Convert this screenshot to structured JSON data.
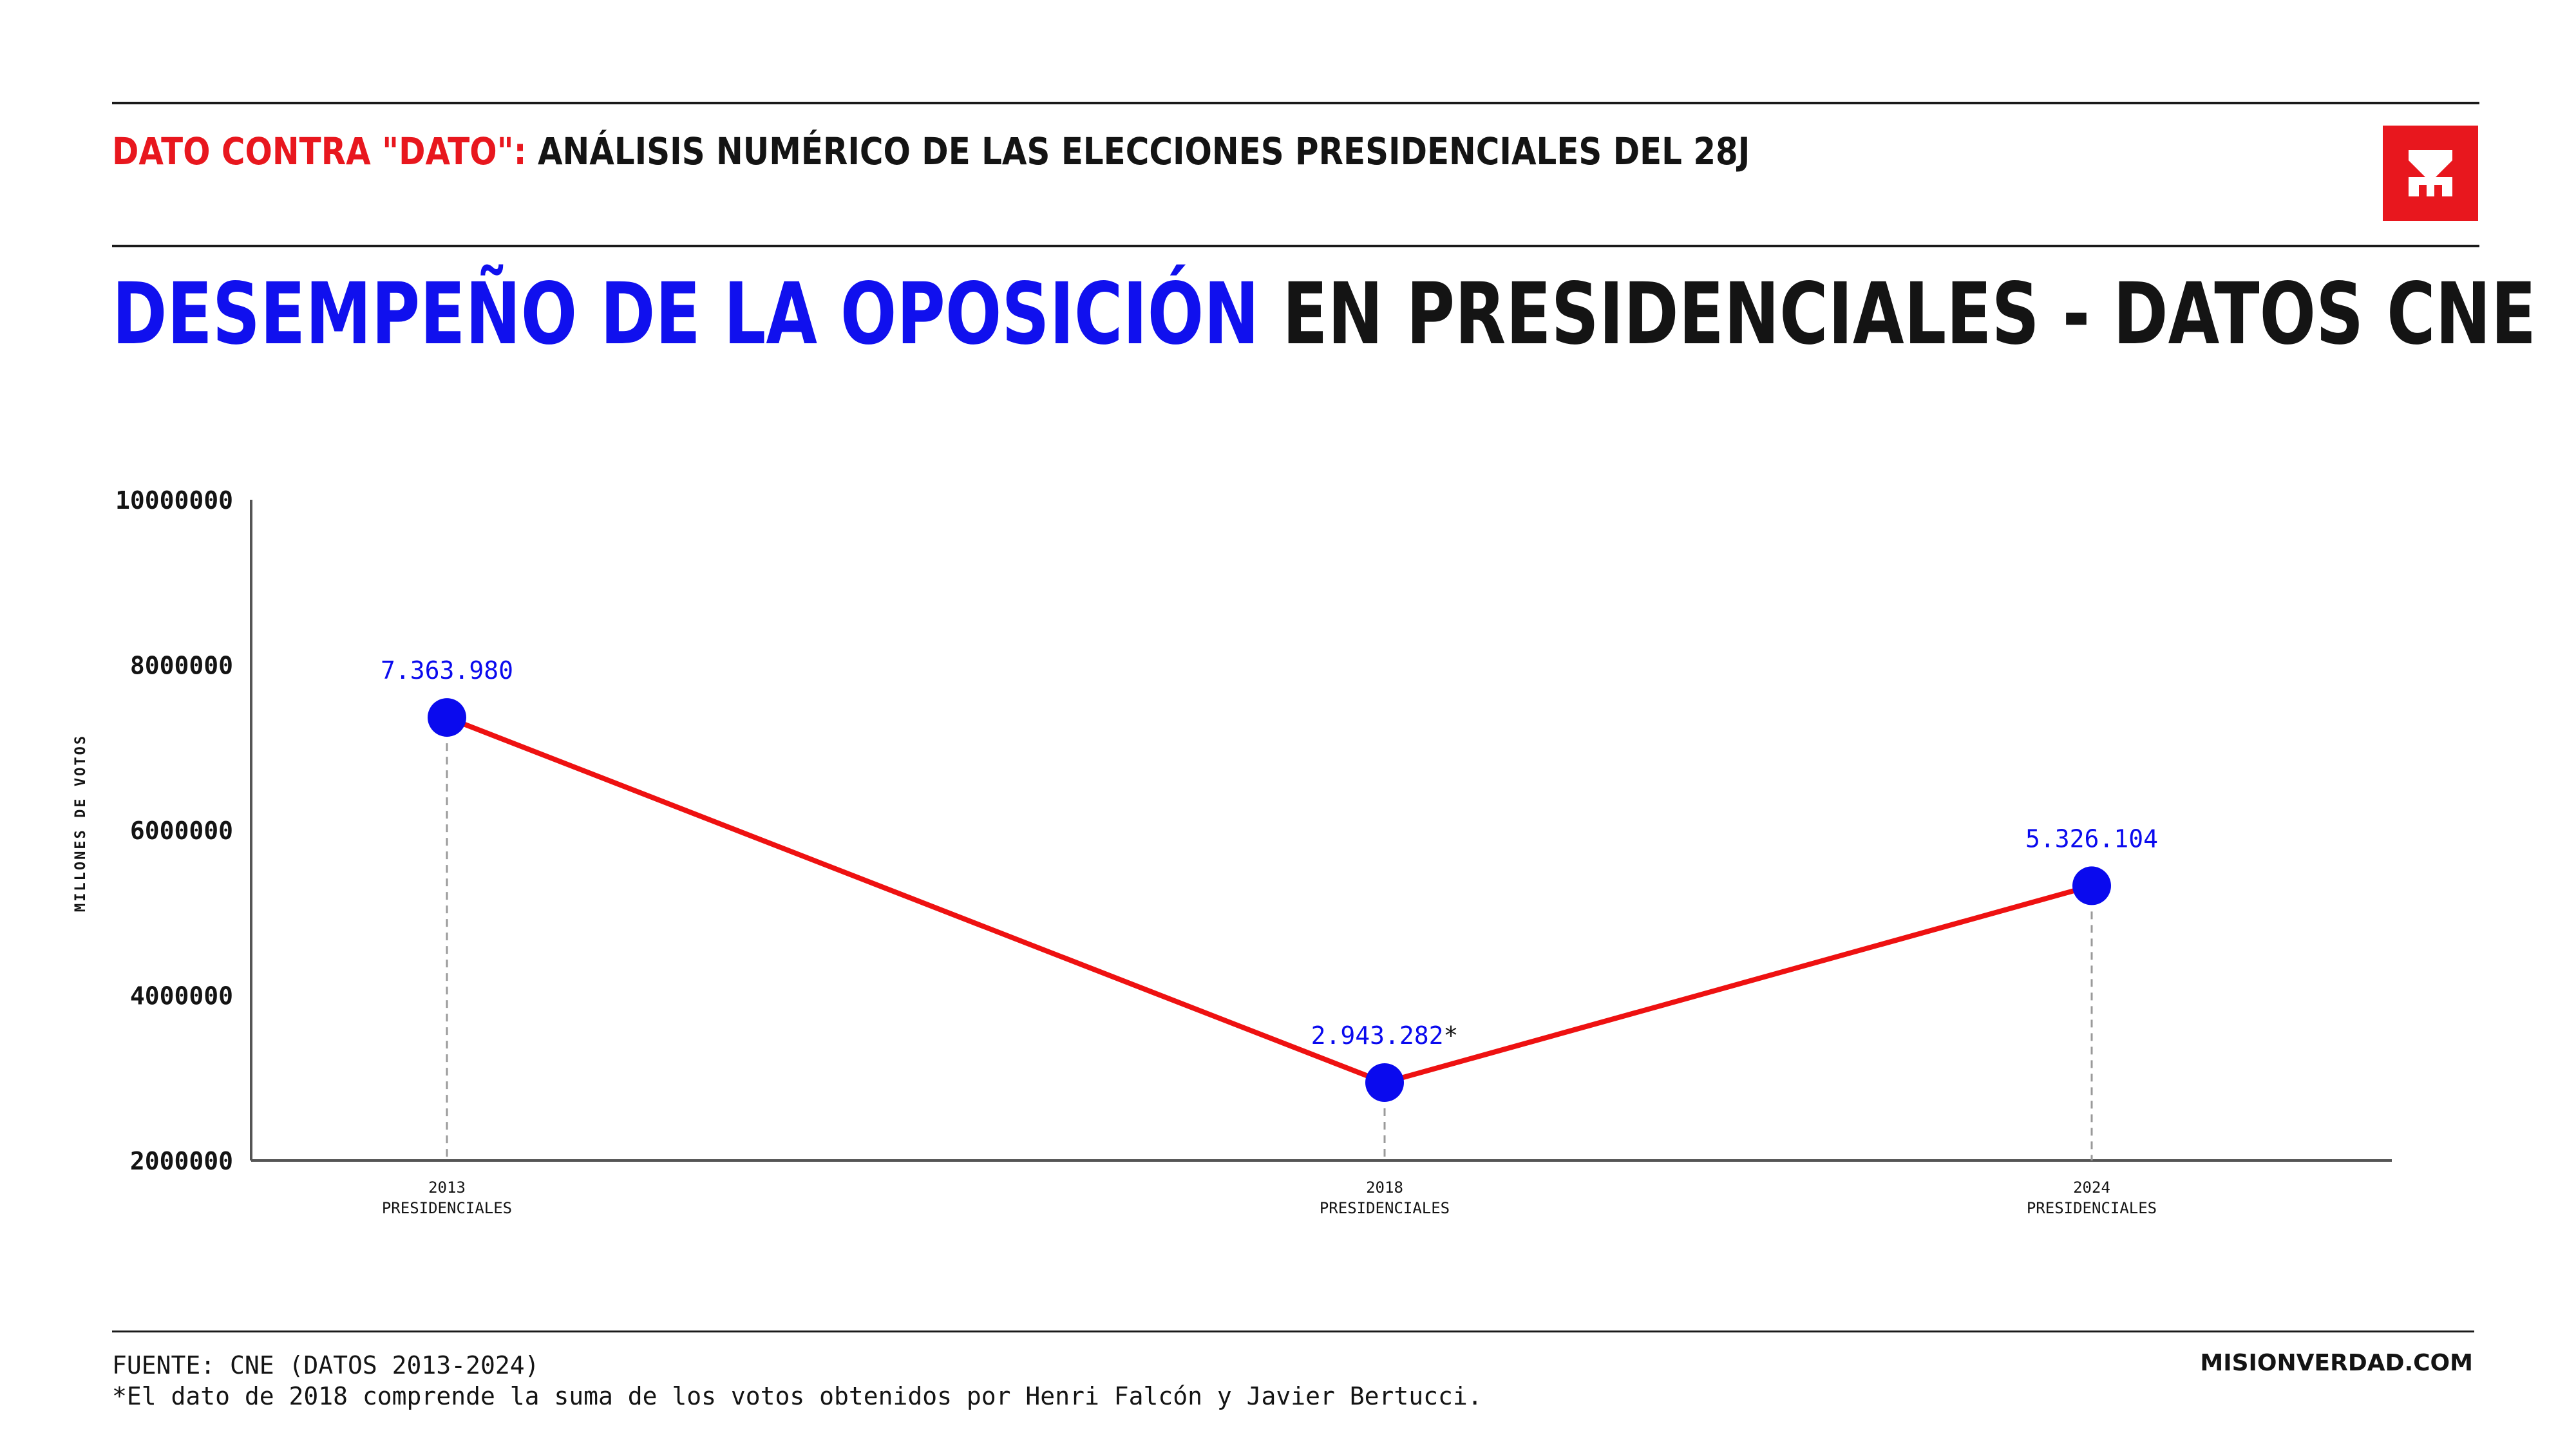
{
  "header": {
    "kicker_red": "DATO CONTRA \"DATO\":",
    "kicker_black": " ANÁLISIS NUMÉRICO DE LAS ELECCIONES PRESIDENCIALES DEL 28J",
    "logo_icon": "misionverdad-logo-icon",
    "logo_color": "#e8171e"
  },
  "title": {
    "blue": "DESEMPEÑO DE LA OPOSICIÓN",
    "black": " EN PRESIDENCIALES - DATOS CNE"
  },
  "chart_data": {
    "type": "line",
    "title": "DESEMPEÑO DE LA OPOSICIÓN EN PRESIDENCIALES - DATOS CNE",
    "xlabel": "",
    "ylabel": "MILLONES DE VOTOS",
    "ylim": [
      2000000,
      10000000
    ],
    "y_ticks": [
      "10000000",
      "8000000",
      "6000000",
      "4000000",
      "2000000"
    ],
    "y_tick_values": [
      10000000,
      8000000,
      6000000,
      4000000,
      2000000
    ],
    "categories": [
      {
        "year": "2013",
        "label": "PRESIDENCIALES"
      },
      {
        "year": "2018",
        "label": "PRESIDENCIALES"
      },
      {
        "year": "2024",
        "label": "PRESIDENCIALES"
      }
    ],
    "series": [
      {
        "values": [
          7363980,
          2943282,
          5326104
        ],
        "data_labels": [
          "7.363.980",
          "2.943.282*",
          "5.326.104"
        ],
        "line_color": "#ee1111",
        "marker_color": "#0a0aee"
      }
    ],
    "grid": false,
    "legend": "none"
  },
  "footer": {
    "source": "FUENTE: CNE (DATOS 2013-2024)",
    "note": "*El dato de 2018 comprende la suma de los votos obtenidos por Henri Falcón y Javier Bertucci.",
    "site": "MISIONVERDAD.COM"
  }
}
